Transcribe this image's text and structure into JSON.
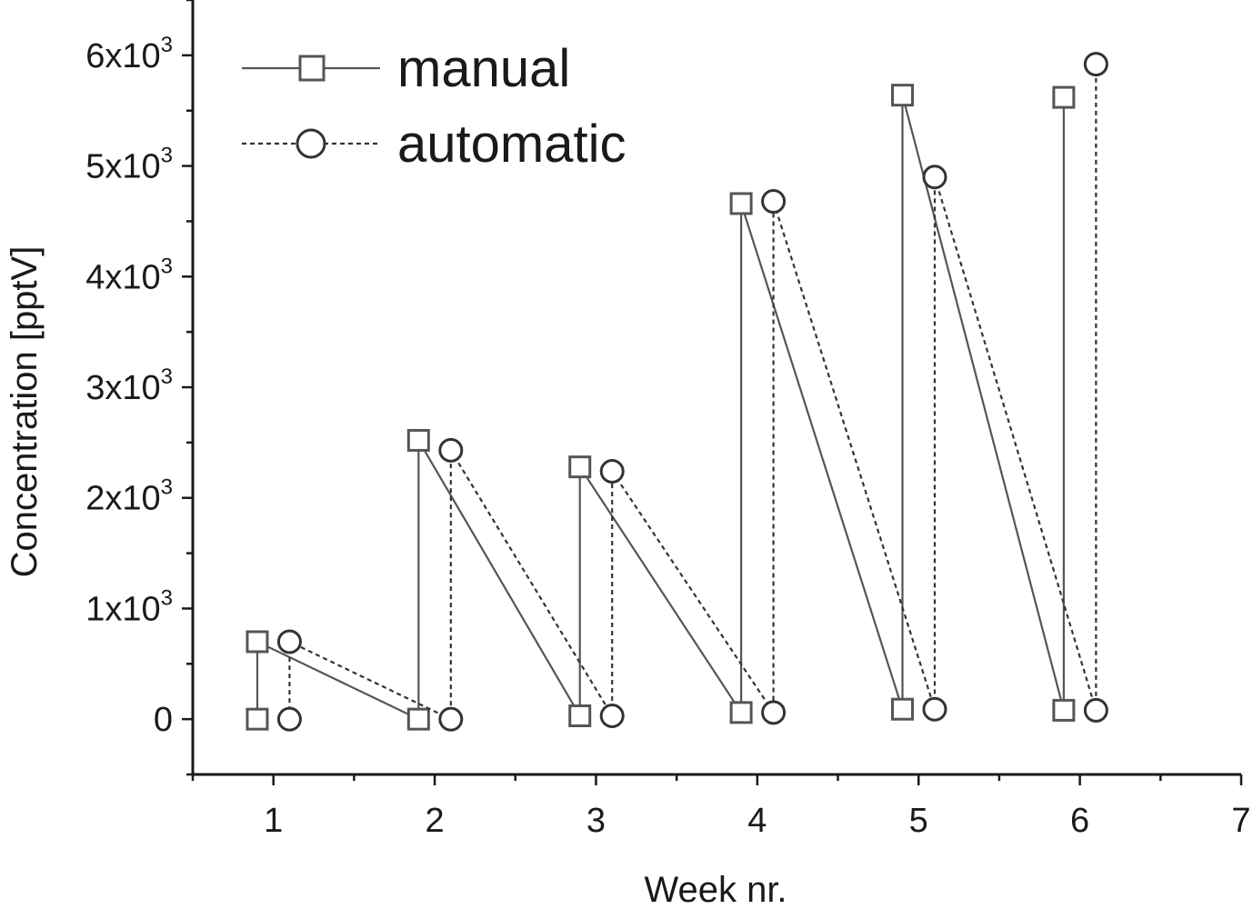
{
  "chart_data": {
    "type": "line",
    "title": "",
    "xlabel": "Week nr.",
    "ylabel": "Concentration [pptV]",
    "xlim": [
      0.5,
      7
    ],
    "ylim": [
      -500,
      6500
    ],
    "x_ticks": [
      1,
      2,
      3,
      4,
      5,
      6,
      7
    ],
    "y_ticks": [
      {
        "value": 0,
        "base": "0",
        "exp": ""
      },
      {
        "value": 1000,
        "base": "1x10",
        "exp": "3"
      },
      {
        "value": 2000,
        "base": "2x10",
        "exp": "3"
      },
      {
        "value": 3000,
        "base": "3x10",
        "exp": "3"
      },
      {
        "value": 4000,
        "base": "4x10",
        "exp": "3"
      },
      {
        "value": 5000,
        "base": "5x10",
        "exp": "3"
      },
      {
        "value": 6000,
        "base": "6x10",
        "exp": "3"
      }
    ],
    "legend_position": "top-left",
    "series": [
      {
        "name": "manual",
        "marker": "square",
        "line_style": "solid",
        "color": "#555555",
        "points": [
          [
            0.9,
            0
          ],
          [
            0.9,
            700
          ],
          [
            1.9,
            0
          ],
          [
            1.9,
            2520
          ],
          [
            2.9,
            30
          ],
          [
            2.9,
            2280
          ],
          [
            3.9,
            60
          ],
          [
            3.9,
            4660
          ],
          [
            4.9,
            90
          ],
          [
            4.9,
            5640
          ],
          [
            5.9,
            80
          ],
          [
            5.9,
            5620
          ]
        ]
      },
      {
        "name": "automatic",
        "marker": "circle",
        "line_style": "dashed",
        "color": "#333333",
        "points": [
          [
            1.1,
            0
          ],
          [
            1.1,
            700
          ],
          [
            2.1,
            0
          ],
          [
            2.1,
            2430
          ],
          [
            3.1,
            30
          ],
          [
            3.1,
            2240
          ],
          [
            4.1,
            60
          ],
          [
            4.1,
            4680
          ],
          [
            5.1,
            90
          ],
          [
            5.1,
            4900
          ],
          [
            6.1,
            80
          ],
          [
            6.1,
            5920
          ]
        ]
      }
    ]
  }
}
